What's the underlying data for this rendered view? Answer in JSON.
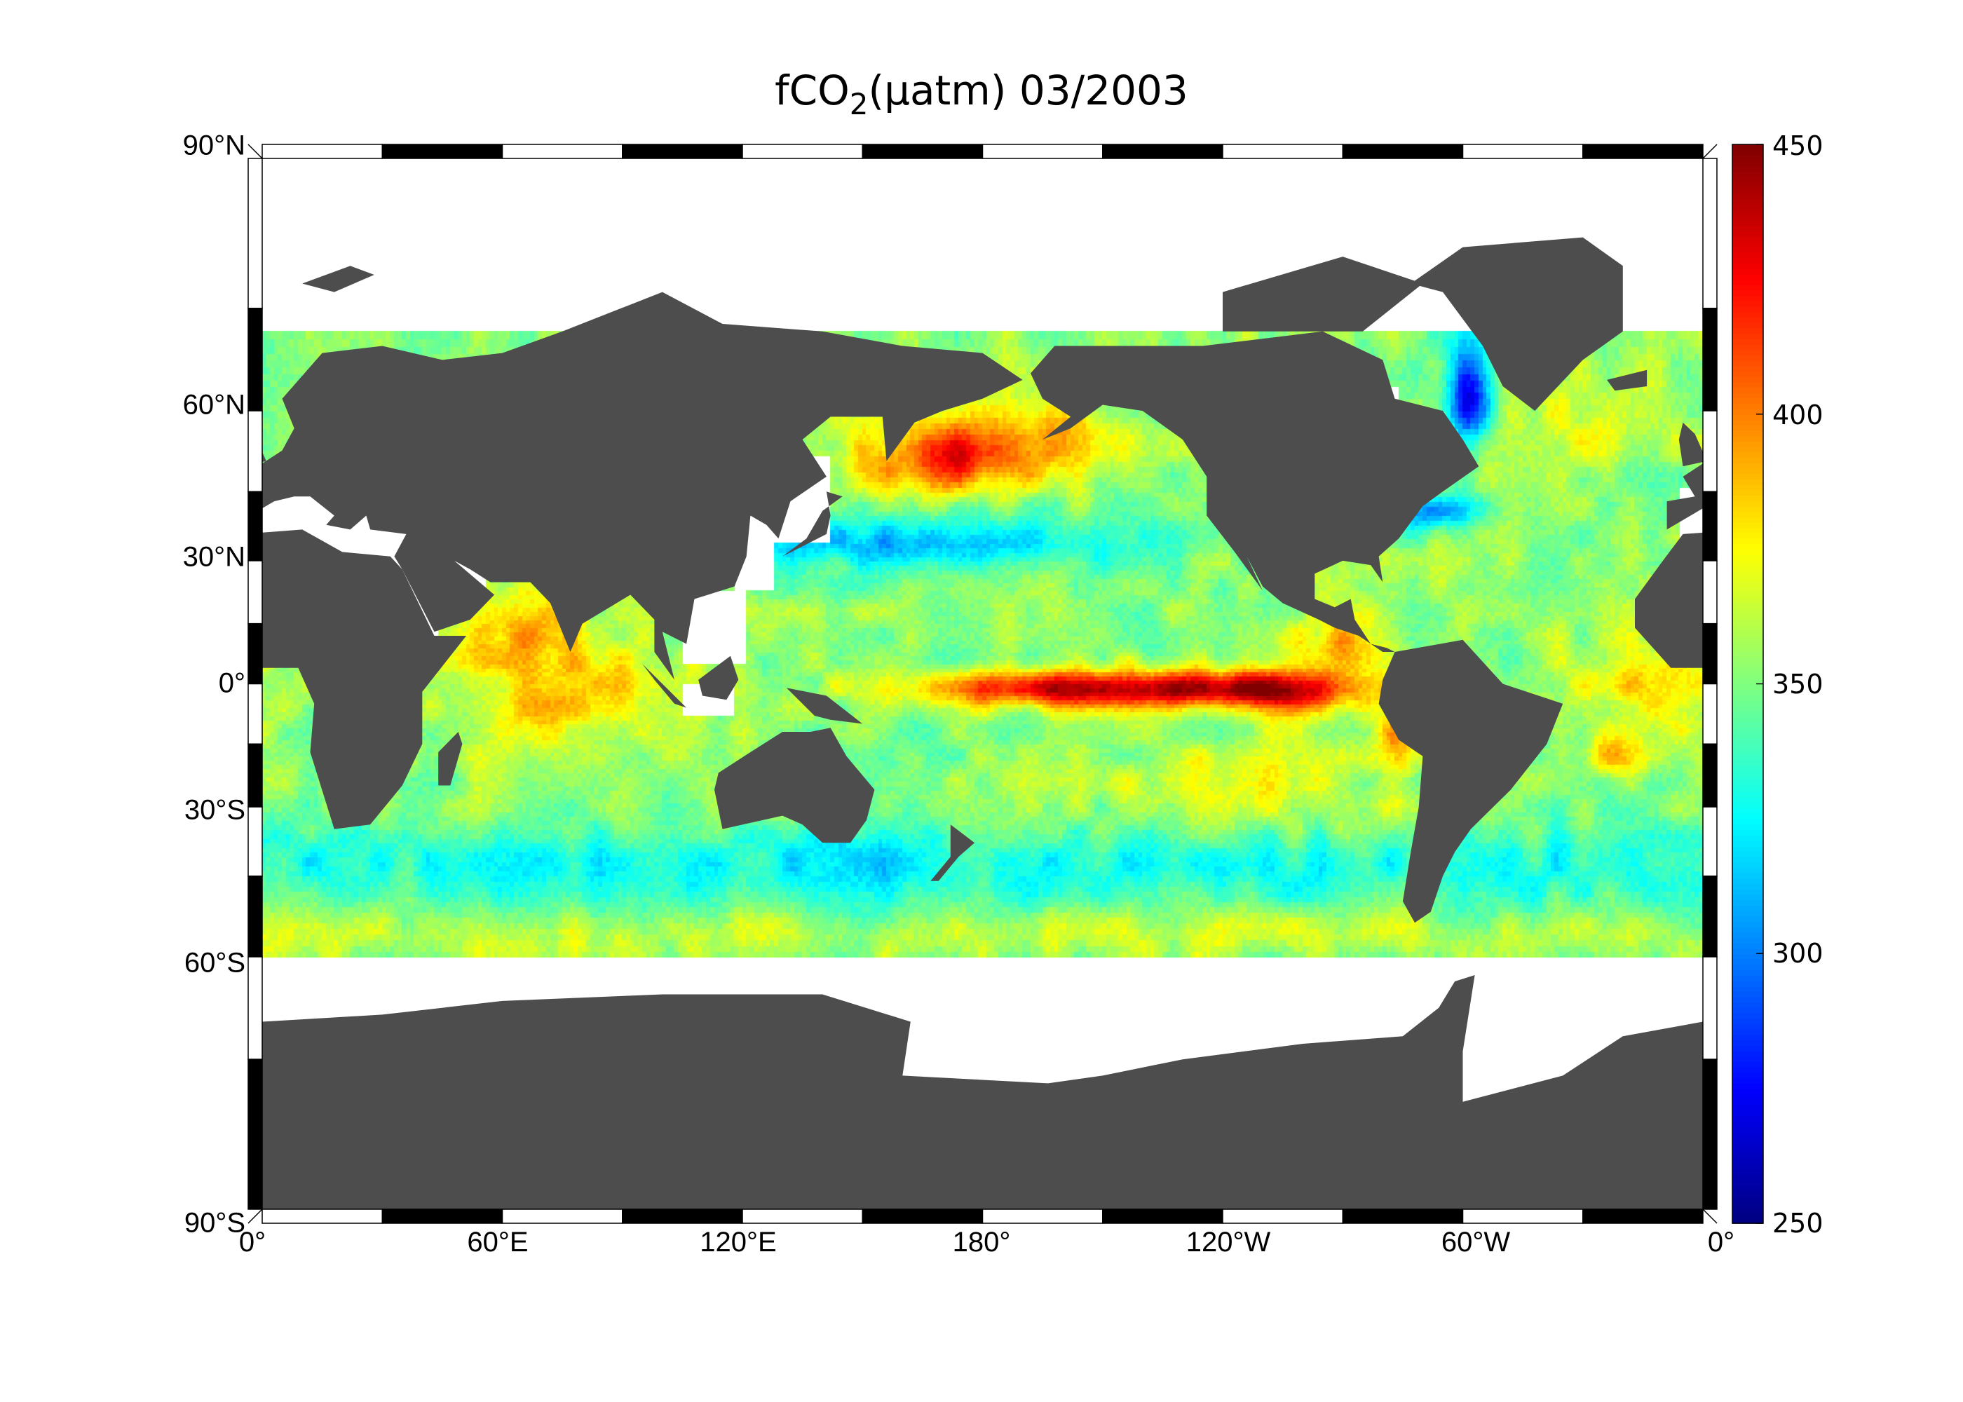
{
  "title": {
    "main": "fCO",
    "subscript": "2",
    "rest": "(μatm)  03/2003"
  },
  "x_axis": {
    "tick_labels": [
      "0°",
      "60°E",
      "120°E",
      "180°",
      "120°W",
      "60°W",
      "0°"
    ]
  },
  "y_axis": {
    "tick_labels": [
      "90°N",
      "60°N",
      "30°N",
      "0°",
      "30°S",
      "60°S",
      "90°S"
    ]
  },
  "colorbar": {
    "tick_labels": [
      "450",
      "400",
      "350",
      "300",
      "250"
    ],
    "range": [
      250,
      450
    ],
    "colormap": "jet"
  },
  "map": {
    "projection": "Miller cylindrical",
    "lon_range": [
      0,
      360
    ],
    "lat_range": [
      -90,
      90
    ],
    "data_lat_coverage": [
      -60,
      72
    ],
    "variable": "fCO2",
    "land_color": "#4d4d4d",
    "missing_color": "#ffffff"
  }
}
